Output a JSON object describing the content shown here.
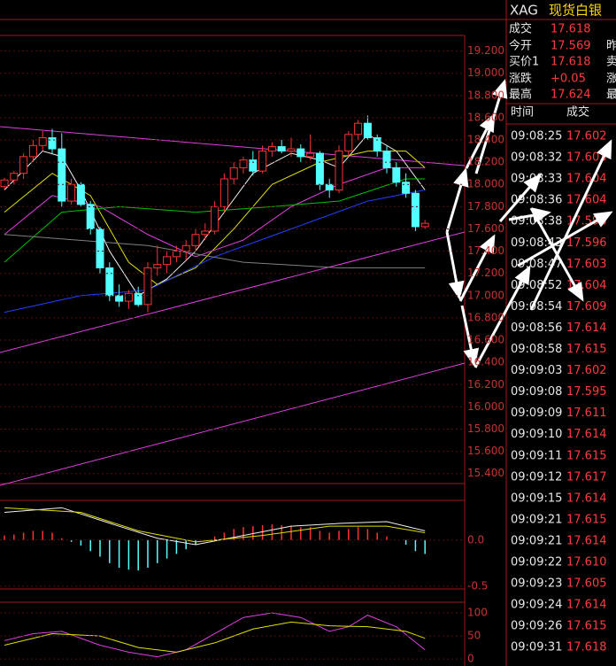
{
  "header": {
    "symbol": "XAG",
    "name": "现货白银"
  },
  "quote": {
    "rows": [
      {
        "label": "成交",
        "value": "17.618"
      },
      {
        "label": "今开",
        "value": "17.569",
        "side": "昨"
      },
      {
        "label": "买价1",
        "value": "17.618",
        "side": "卖"
      },
      {
        "label": "涨跌",
        "value": "+0.05",
        "side": "涨"
      },
      {
        "label": "最高",
        "value": "17.624",
        "side": "最"
      }
    ]
  },
  "trades": {
    "headers": [
      "时间",
      "成交"
    ],
    "rows": [
      [
        "09:08:25",
        "17.602"
      ],
      [
        "09:08:32",
        "17.603"
      ],
      [
        "09:08:33",
        "17.604"
      ],
      [
        "09:08:36",
        "17.604"
      ],
      [
        "09:08:38",
        "17.598"
      ],
      [
        "09:08:43",
        "17.596"
      ],
      [
        "09:08:47",
        "17.603"
      ],
      [
        "09:08:52",
        "17.604"
      ],
      [
        "09:08:54",
        "17.609"
      ],
      [
        "09:08:56",
        "17.614"
      ],
      [
        "09:08:58",
        "17.615"
      ],
      [
        "09:09:03",
        "17.602"
      ],
      [
        "09:09:08",
        "17.595"
      ],
      [
        "09:09:09",
        "17.611"
      ],
      [
        "09:09:10",
        "17.614"
      ],
      [
        "09:09:11",
        "17.615"
      ],
      [
        "09:09:12",
        "17.617"
      ],
      [
        "09:09:15",
        "17.614"
      ],
      [
        "09:09:21",
        "17.615"
      ],
      [
        "09:09:21",
        "17.614"
      ],
      [
        "09:09:22",
        "17.610"
      ],
      [
        "09:09:23",
        "17.605"
      ],
      [
        "09:09:24",
        "17.614"
      ],
      [
        "09:09:26",
        "17.615"
      ],
      [
        "09:09:31",
        "17.618"
      ]
    ]
  },
  "chart_data": [
    {
      "type": "candlestick",
      "ylim": [
        15.31,
        19.34
      ],
      "up_color": "#ff3232",
      "down_color": "#54ffff",
      "yticks": [
        {
          "value": 19.2,
          "label": "19.200"
        },
        {
          "value": 19.0,
          "label": "19.000"
        },
        {
          "value": 18.8,
          "label": "18.800"
        },
        {
          "value": 18.6,
          "label": "18.600"
        },
        {
          "value": 18.4,
          "label": "18.400"
        },
        {
          "value": 18.2,
          "label": "18.200"
        },
        {
          "value": 18.0,
          "label": "18.000"
        },
        {
          "value": 17.8,
          "label": "17.800"
        },
        {
          "value": 17.6,
          "label": "17.600"
        },
        {
          "value": 17.4,
          "label": "17.400"
        },
        {
          "value": 17.2,
          "label": "17.200"
        },
        {
          "value": 17.0,
          "label": "17.000"
        },
        {
          "value": 16.8,
          "label": "16.800"
        },
        {
          "value": 16.6,
          "label": "16.600"
        },
        {
          "value": 16.4,
          "label": "16.400"
        },
        {
          "value": 16.2,
          "label": "16.200"
        },
        {
          "value": 16.0,
          "label": "16.000"
        },
        {
          "value": 15.8,
          "label": "15.800"
        },
        {
          "value": 15.6,
          "label": "15.600"
        },
        {
          "value": 15.4,
          "label": "15.400"
        }
      ],
      "candles": [
        [
          17.98,
          18.06,
          17.95,
          18.04
        ],
        [
          18.04,
          18.12,
          18.0,
          18.1
        ],
        [
          18.1,
          18.28,
          18.05,
          18.25
        ],
        [
          18.25,
          18.4,
          18.2,
          18.35
        ],
        [
          18.35,
          18.48,
          18.3,
          18.42
        ],
        [
          18.42,
          18.5,
          18.28,
          18.32
        ],
        [
          18.32,
          18.46,
          17.8,
          17.85
        ],
        [
          17.85,
          18.05,
          17.82,
          18.0
        ],
        [
          18.0,
          18.02,
          17.8,
          17.82
        ],
        [
          17.82,
          17.85,
          17.55,
          17.6
        ],
        [
          17.6,
          17.62,
          17.2,
          17.25
        ],
        [
          17.25,
          17.3,
          16.95,
          17.0
        ],
        [
          17.0,
          17.1,
          16.9,
          16.95
        ],
        [
          16.95,
          17.05,
          16.88,
          17.02
        ],
        [
          17.02,
          17.08,
          16.9,
          16.92
        ],
        [
          16.92,
          17.3,
          16.85,
          17.25
        ],
        [
          17.25,
          17.45,
          17.18,
          17.28
        ],
        [
          17.28,
          17.4,
          17.2,
          17.35
        ],
        [
          17.35,
          17.45,
          17.3,
          17.4
        ],
        [
          17.4,
          17.5,
          17.32,
          17.45
        ],
        [
          17.45,
          17.6,
          17.4,
          17.55
        ],
        [
          17.55,
          17.65,
          17.5,
          17.58
        ],
        [
          17.58,
          17.85,
          17.55,
          17.8
        ],
        [
          17.8,
          18.1,
          17.75,
          18.05
        ],
        [
          18.05,
          18.2,
          18.0,
          18.15
        ],
        [
          18.15,
          18.25,
          18.1,
          18.22
        ],
        [
          18.22,
          18.3,
          18.08,
          18.12
        ],
        [
          18.12,
          18.35,
          18.1,
          18.3
        ],
        [
          18.3,
          18.38,
          18.25,
          18.34
        ],
        [
          18.34,
          18.4,
          18.28,
          18.3
        ],
        [
          18.3,
          18.42,
          18.25,
          18.32
        ],
        [
          18.32,
          18.36,
          18.2,
          18.25
        ],
        [
          18.25,
          18.45,
          18.22,
          18.28
        ],
        [
          18.28,
          18.3,
          17.95,
          18.0
        ],
        [
          18.0,
          18.05,
          17.88,
          17.95
        ],
        [
          17.95,
          18.35,
          17.92,
          18.3
        ],
        [
          18.3,
          18.48,
          18.25,
          18.45
        ],
        [
          18.45,
          18.58,
          18.4,
          18.55
        ],
        [
          18.55,
          18.62,
          18.4,
          18.42
        ],
        [
          18.42,
          18.45,
          18.25,
          18.3
        ],
        [
          18.3,
          18.35,
          18.1,
          18.15
        ],
        [
          18.15,
          18.2,
          17.98,
          18.02
        ],
        [
          18.02,
          18.1,
          17.88,
          17.92
        ],
        [
          17.92,
          17.95,
          17.58,
          17.62
        ],
        [
          17.62,
          17.68,
          17.6,
          17.65
        ]
      ],
      "lines": [
        {
          "color": "#f0f0f0",
          "points": [
            [
              0,
              17.95
            ],
            [
              4,
              18.3
            ],
            [
              6,
              18.25
            ],
            [
              8,
              17.95
            ],
            [
              11,
              17.4
            ],
            [
              14,
              17.0
            ],
            [
              17,
              17.15
            ],
            [
              20,
              17.4
            ],
            [
              23,
              17.75
            ],
            [
              26,
              18.1
            ],
            [
              30,
              18.28
            ],
            [
              33,
              18.22
            ],
            [
              35,
              18.15
            ],
            [
              38,
              18.45
            ],
            [
              41,
              18.3
            ],
            [
              44,
              17.95
            ]
          ]
        },
        {
          "color": "#e0e000",
          "points": [
            [
              0,
              17.75
            ],
            [
              5,
              18.1
            ],
            [
              9,
              17.9
            ],
            [
              13,
              17.3
            ],
            [
              16,
              17.1
            ],
            [
              20,
              17.25
            ],
            [
              24,
              17.6
            ],
            [
              28,
              18.0
            ],
            [
              33,
              18.2
            ],
            [
              38,
              18.3
            ],
            [
              42,
              18.3
            ],
            [
              44,
              18.15
            ]
          ]
        },
        {
          "color": "#e040e0",
          "points": [
            [
              0,
              17.55
            ],
            [
              5,
              17.9
            ],
            [
              10,
              17.8
            ],
            [
              15,
              17.55
            ],
            [
              20,
              17.35
            ],
            [
              25,
              17.5
            ],
            [
              30,
              17.8
            ],
            [
              35,
              18.0
            ],
            [
              40,
              18.15
            ],
            [
              44,
              18.15
            ]
          ]
        },
        {
          "color": "#00c000",
          "points": [
            [
              0,
              17.3
            ],
            [
              6,
              17.75
            ],
            [
              12,
              17.8
            ],
            [
              20,
              17.75
            ],
            [
              28,
              17.8
            ],
            [
              35,
              17.85
            ],
            [
              42,
              18.05
            ],
            [
              44,
              18.05
            ]
          ]
        },
        {
          "color": "#2040ff",
          "points": [
            [
              0,
              16.85
            ],
            [
              8,
              17.0
            ],
            [
              15,
              17.05
            ],
            [
              22,
              17.35
            ],
            [
              30,
              17.6
            ],
            [
              38,
              17.85
            ],
            [
              44,
              17.95
            ]
          ]
        },
        {
          "color": "#808080",
          "points": [
            [
              0,
              17.55
            ],
            [
              15,
              17.45
            ],
            [
              25,
              17.3
            ],
            [
              35,
              17.25
            ],
            [
              44,
              17.25
            ]
          ]
        }
      ]
    },
    {
      "type": "bar",
      "ylim": [
        -0.53,
        0.43
      ],
      "up_color": "#ff3232",
      "down_color": "#54ffff",
      "yticks": [
        {
          "value": 0,
          "label": "0.0"
        },
        {
          "value": -0.5,
          "label": "-0.5"
        }
      ],
      "values": [
        0.05,
        0.06,
        0.08,
        0.1,
        0.1,
        0.08,
        0.02,
        -0.02,
        -0.06,
        -0.12,
        -0.18,
        -0.25,
        -0.3,
        -0.32,
        -0.33,
        -0.3,
        -0.25,
        -0.2,
        -0.15,
        -0.1,
        -0.05,
        0,
        0.04,
        0.08,
        0.12,
        0.14,
        0.15,
        0.16,
        0.17,
        0.16,
        0.15,
        0.14,
        0.14,
        0.1,
        0.08,
        0.1,
        0.12,
        0.14,
        0.12,
        0.08,
        0.04,
        0,
        -0.05,
        -0.12,
        -0.15
      ],
      "lines": [
        {
          "color": "#f0f0f0",
          "points": [
            [
              0,
              0.3
            ],
            [
              6,
              0.35
            ],
            [
              12,
              0.15
            ],
            [
              16,
              0.02
            ],
            [
              20,
              -0.05
            ],
            [
              25,
              0.05
            ],
            [
              30,
              0.15
            ],
            [
              35,
              0.18
            ],
            [
              40,
              0.2
            ],
            [
              44,
              0.1
            ]
          ]
        },
        {
          "color": "#e0e000",
          "points": [
            [
              0,
              0.35
            ],
            [
              8,
              0.3
            ],
            [
              14,
              0.1
            ],
            [
              20,
              -0.02
            ],
            [
              27,
              0.05
            ],
            [
              34,
              0.15
            ],
            [
              40,
              0.15
            ],
            [
              44,
              0.08
            ]
          ]
        }
      ]
    },
    {
      "type": "line",
      "ylim": [
        -15,
        123
      ],
      "yticks": [
        100,
        50,
        0
      ],
      "lines": [
        {
          "color": "#e040e0",
          "points": [
            [
              0,
              40
            ],
            [
              3,
              55
            ],
            [
              6,
              60
            ],
            [
              10,
              30
            ],
            [
              13,
              15
            ],
            [
              16,
              5
            ],
            [
              19,
              20
            ],
            [
              22,
              55
            ],
            [
              25,
              90
            ],
            [
              28,
              100
            ],
            [
              31,
              90
            ],
            [
              34,
              60
            ],
            [
              36,
              70
            ],
            [
              38,
              95
            ],
            [
              41,
              70
            ],
            [
              44,
              20
            ]
          ]
        },
        {
          "color": "#e0e000",
          "points": [
            [
              0,
              30
            ],
            [
              5,
              55
            ],
            [
              10,
              50
            ],
            [
              14,
              25
            ],
            [
              18,
              15
            ],
            [
              22,
              35
            ],
            [
              26,
              65
            ],
            [
              30,
              80
            ],
            [
              34,
              72
            ],
            [
              38,
              70
            ],
            [
              42,
              60
            ],
            [
              44,
              45
            ]
          ]
        }
      ]
    }
  ]
}
